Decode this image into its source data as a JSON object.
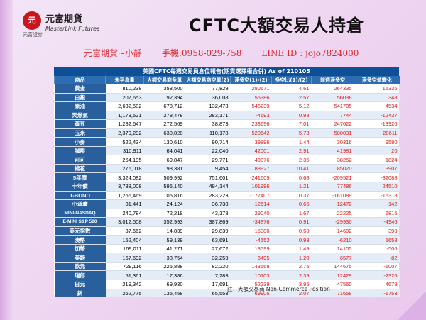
{
  "logo": {
    "mark": "元",
    "name": "元富期貨",
    "english": "MasterLink Futures",
    "sub": "元富證券"
  },
  "title": "CFTC大額交易人持倉",
  "contact": {
    "broker": "元富期貨~小靜",
    "phone": "手機:0958-029-758",
    "line": "LINE ID : jojo7824000"
  },
  "table": {
    "title": "美國CFTC每週交易員倉位報告(期貨選擇權合併) As of  210105",
    "headers": [
      "商品",
      "未平倉量",
      "大額交易商多單",
      "大額交易商空單(2)",
      "淨多空(1)-(2)",
      "多空比(1)/(2)",
      "前週淨多空",
      "淨多空值變化"
    ],
    "rows": [
      [
        "黃金",
        "810,238",
        "358,500",
        "77,829",
        "280671",
        "4.61",
        "264335",
        "16336"
      ],
      [
        "白銀",
        "207,653",
        "92,394",
        "36,008",
        "56386",
        "2.57",
        "56038",
        "348"
      ],
      [
        "原油",
        "2,632,582",
        "678,712",
        "132,473",
        "546239",
        "5.12",
        "541705",
        "4534"
      ],
      [
        "天然氣",
        "1,173,521",
        "278,478",
        "283,171",
        "-4693",
        "0.98",
        "7744",
        "-12437"
      ],
      [
        "黃豆",
        "1,282,647",
        "272,569",
        "38,873",
        "233696",
        "7.01",
        "247622",
        "-13926"
      ],
      [
        "玉米",
        "2,379,202",
        "630,820",
        "110,178",
        "520642",
        "5.73",
        "500031",
        "20611"
      ],
      [
        "小麥",
        "522,434",
        "130,610",
        "90,714",
        "39896",
        "1.44",
        "30316",
        "9580"
      ],
      [
        "咖啡",
        "310,911",
        "64,041",
        "22,040",
        "42001",
        "2.91",
        "41981",
        "20"
      ],
      [
        "可可",
        "254,195",
        "69,847",
        "29,771",
        "40076",
        "2.35",
        "38252",
        "1824"
      ],
      [
        "棉花",
        "276,018",
        "98,381",
        "9,454",
        "88927",
        "10.41",
        "85020",
        "3907"
      ],
      [
        "5年債",
        "3,324,082",
        "509,992",
        "751,601",
        "-241609",
        "0.68",
        "-209521",
        "-32088"
      ],
      [
        "十年債",
        "3,788,008",
        "596,140",
        "494,144",
        "101996",
        "1.21",
        "77486",
        "24510"
      ],
      [
        "T-BOND",
        "1,265,469",
        "105,816",
        "283,223",
        "-177407",
        "0.37",
        "-161089",
        "-16318"
      ],
      [
        "小道瓊",
        "81,441",
        "24,124",
        "36,738",
        "-12614",
        "0.66",
        "-12472",
        "-142"
      ],
      [
        "MINI-NASDAQ",
        "240,784",
        "72,218",
        "43,178",
        "29040",
        "1.67",
        "22225",
        "6815"
      ],
      [
        "E-MINI S&P 500",
        "3,012,508",
        "352,993",
        "387,869",
        "-34876",
        "0.91",
        "-29930",
        "-4946"
      ],
      [
        "美元指數",
        "37,662",
        "14,839",
        "29,839",
        "-15000",
        "0.50",
        "-14602",
        "-398"
      ],
      [
        "澳幣",
        "162,404",
        "59,139",
        "63,691",
        "-4552",
        "0.93",
        "-6210",
        "1658"
      ],
      [
        "加幣",
        "169,011",
        "41,271",
        "27,672",
        "13599",
        "1.49",
        "14105",
        "-506"
      ],
      [
        "英鎊",
        "167,692",
        "38,754",
        "32,259",
        "6495",
        "1.20",
        "6577",
        "-82"
      ],
      [
        "歐元",
        "729,116",
        "225,888",
        "82,220",
        "143668",
        "2.75",
        "144675",
        "-1007"
      ],
      [
        "瑞郎",
        "51,361",
        "17,386",
        "7,283",
        "10103",
        "2.39",
        "12429",
        "-2326"
      ],
      [
        "日元",
        "219,342",
        "69,930",
        "17,691",
        "52239",
        "3.95",
        "47560",
        "4679"
      ],
      [
        "銅",
        "262,775",
        "135,458",
        "65,553",
        "69905",
        "2.07",
        "71658",
        "-1753"
      ]
    ]
  },
  "note": "註：大額交易商 Non-Commerce Position",
  "colors": {
    "header_bg": "#0f4f95",
    "name_bg": "#2a5f9e",
    "accent_red": "#e01818"
  }
}
